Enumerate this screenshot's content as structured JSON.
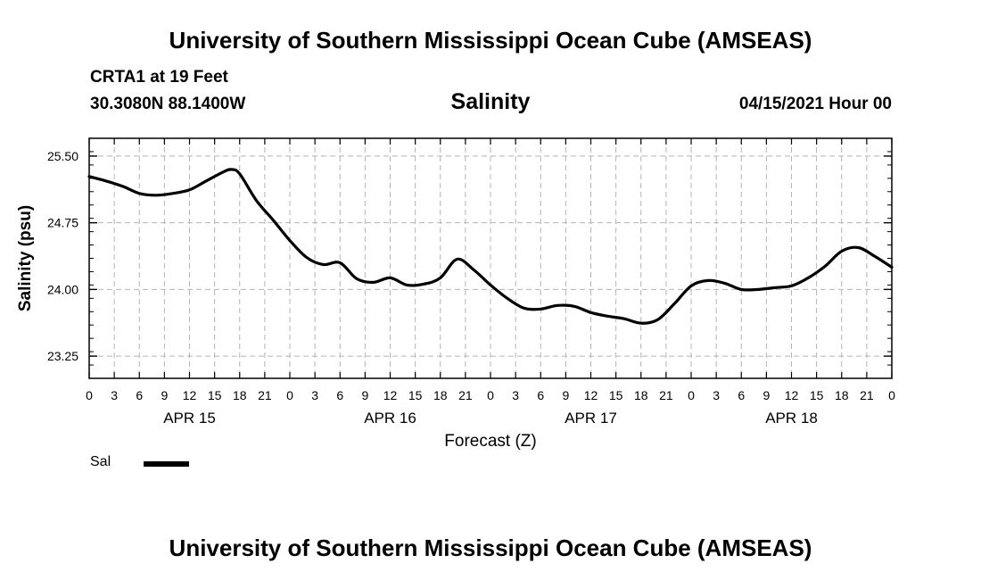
{
  "header": {
    "title": "University of Southern Mississippi Ocean Cube (AMSEAS)",
    "station": "CRTA1 at 19 Feet",
    "coordinates": "30.3080N  88.1400W",
    "date": "04/15/2021 Hour 00"
  },
  "footer": {
    "title": "University of Southern Mississippi Ocean Cube (AMSEAS)"
  },
  "chart_data": {
    "type": "line",
    "title": "Salinity",
    "xlabel": "Forecast (Z)",
    "ylabel": "Salinity (psu)",
    "xlim": [
      0,
      96
    ],
    "ylim": [
      23.0,
      25.7
    ],
    "grid": true,
    "x_tick_labels": [
      "0",
      "3",
      "6",
      "9",
      "12",
      "15",
      "18",
      "21",
      "0",
      "3",
      "6",
      "9",
      "12",
      "15",
      "18",
      "21",
      "0",
      "3",
      "6",
      "9",
      "12",
      "15",
      "18",
      "21",
      "0",
      "3",
      "6",
      "9",
      "12",
      "15",
      "18",
      "21",
      "0"
    ],
    "x_tick_hours": [
      0,
      3,
      6,
      9,
      12,
      15,
      18,
      21,
      24,
      27,
      30,
      33,
      36,
      39,
      42,
      45,
      48,
      51,
      54,
      57,
      60,
      63,
      66,
      69,
      72,
      75,
      78,
      81,
      84,
      87,
      90,
      93,
      96
    ],
    "day_labels": [
      {
        "label": "APR 15",
        "hour": 12
      },
      {
        "label": "APR 16",
        "hour": 36
      },
      {
        "label": "APR 17",
        "hour": 60
      },
      {
        "label": "APR 18",
        "hour": 84
      }
    ],
    "y_ticks": [
      23.25,
      24.0,
      24.75,
      25.5
    ],
    "y_tick_labels": [
      "23.25",
      "24.00",
      "24.75",
      "25.50"
    ],
    "legend": [
      {
        "name": "Sal",
        "color": "#000000"
      }
    ],
    "series": [
      {
        "name": "Sal",
        "color": "#000000",
        "x": [
          0,
          2,
          4,
          6,
          8,
          10,
          12,
          14,
          16,
          17,
          18,
          20,
          22,
          24,
          26,
          28,
          30,
          32,
          34,
          36,
          38,
          40,
          42,
          44,
          46,
          48,
          50,
          52,
          54,
          56,
          58,
          60,
          62,
          64,
          66,
          68,
          70,
          72,
          74,
          76,
          78,
          80,
          82,
          84,
          86,
          88,
          90,
          92,
          94,
          96
        ],
        "y": [
          25.27,
          25.22,
          25.16,
          25.08,
          25.06,
          25.08,
          25.12,
          25.22,
          25.32,
          25.35,
          25.3,
          25.0,
          24.78,
          24.55,
          24.36,
          24.28,
          24.3,
          24.12,
          24.08,
          24.13,
          24.05,
          24.06,
          24.13,
          24.34,
          24.22,
          24.05,
          23.9,
          23.79,
          23.78,
          23.82,
          23.81,
          23.74,
          23.7,
          23.67,
          23.62,
          23.66,
          23.84,
          24.04,
          24.1,
          24.07,
          24.0,
          24.0,
          24.02,
          24.04,
          24.13,
          24.26,
          24.43,
          24.47,
          24.37,
          24.25
        ]
      }
    ]
  }
}
